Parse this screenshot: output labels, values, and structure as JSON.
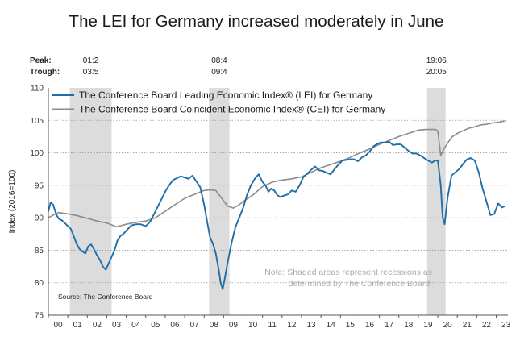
{
  "chart_data": {
    "type": "line",
    "title": "The LEI for Germany increased moderately in June",
    "ylabel": "Index (2016=100)",
    "ylim": [
      75,
      110
    ],
    "yticks": [
      75,
      80,
      85,
      90,
      95,
      100,
      105,
      110
    ],
    "xlim": [
      2000,
      2023.6
    ],
    "xtick_labels": [
      "00",
      "01",
      "02",
      "03",
      "04",
      "05",
      "06",
      "07",
      "08",
      "09",
      "10",
      "11",
      "12",
      "13",
      "14",
      "15",
      "16",
      "17",
      "18",
      "19",
      "20",
      "21",
      "22",
      "23"
    ],
    "grid": "horizontal dotted",
    "legend_position": "top-left",
    "peak_label": "Peak:",
    "trough_label": "Trough:",
    "recessions": [
      {
        "start": 2001.1,
        "end": 2003.25,
        "peak": "01:2",
        "trough": "03:5"
      },
      {
        "start": 2008.25,
        "end": 2009.3,
        "peak": "08:4",
        "trough": "09:4"
      },
      {
        "start": 2019.45,
        "end": 2020.4,
        "peak": "19:06",
        "trough": "20:05"
      }
    ],
    "series": [
      {
        "name": "The Conference Board Leading Economic Index® (LEI) for Germany",
        "color": "#1f6ea8",
        "x": [
          2000.0,
          2000.12,
          2000.25,
          2000.4,
          2000.55,
          2000.7,
          2000.85,
          2001.0,
          2001.15,
          2001.3,
          2001.45,
          2001.6,
          2001.75,
          2001.9,
          2002.05,
          2002.2,
          2002.35,
          2002.5,
          2002.65,
          2002.8,
          2002.95,
          2003.1,
          2003.25,
          2003.4,
          2003.55,
          2003.7,
          2003.85,
          2004.0,
          2004.25,
          2004.5,
          2004.75,
          2005.0,
          2005.25,
          2005.5,
          2005.75,
          2006.0,
          2006.2,
          2006.4,
          2006.6,
          2006.8,
          2007.0,
          2007.2,
          2007.4,
          2007.6,
          2007.8,
          2008.0,
          2008.15,
          2008.3,
          2008.45,
          2008.6,
          2008.75,
          2008.85,
          2008.95,
          2009.05,
          2009.2,
          2009.4,
          2009.6,
          2009.8,
          2010.0,
          2010.2,
          2010.4,
          2010.6,
          2010.8,
          2011.0,
          2011.15,
          2011.3,
          2011.45,
          2011.6,
          2011.75,
          2011.9,
          2012.1,
          2012.3,
          2012.5,
          2012.7,
          2012.9,
          2013.1,
          2013.3,
          2013.5,
          2013.7,
          2013.9,
          2014.1,
          2014.3,
          2014.5,
          2014.7,
          2014.9,
          2015.1,
          2015.3,
          2015.5,
          2015.7,
          2015.9,
          2016.1,
          2016.3,
          2016.5,
          2016.7,
          2016.9,
          2017.1,
          2017.3,
          2017.5,
          2017.7,
          2017.9,
          2018.1,
          2018.3,
          2018.5,
          2018.7,
          2018.9,
          2019.1,
          2019.3,
          2019.5,
          2019.7,
          2019.85,
          2020.0,
          2020.15,
          2020.25,
          2020.35,
          2020.5,
          2020.7,
          2020.9,
          2021.1,
          2021.3,
          2021.5,
          2021.7,
          2021.9,
          2022.1,
          2022.3,
          2022.5,
          2022.7,
          2022.9,
          2023.1,
          2023.3,
          2023.45
        ],
        "values": [
          91.0,
          92.4,
          92.0,
          90.5,
          89.8,
          89.6,
          89.2,
          88.7,
          88.3,
          87.2,
          86.0,
          85.2,
          84.8,
          84.5,
          85.6,
          85.9,
          85.1,
          84.2,
          83.5,
          82.5,
          82.0,
          83.0,
          84.0,
          85.0,
          86.5,
          87.2,
          87.5,
          88.0,
          88.8,
          89.0,
          89.0,
          88.7,
          89.5,
          91.0,
          92.5,
          94.0,
          95.0,
          95.8,
          96.1,
          96.4,
          96.2,
          96.0,
          96.5,
          95.6,
          94.7,
          92.0,
          89.5,
          87.0,
          86.0,
          84.5,
          82.0,
          80.0,
          79.0,
          80.5,
          83.0,
          86.0,
          88.5,
          90.0,
          91.5,
          93.5,
          95.0,
          96.0,
          96.7,
          95.5,
          95.0,
          94.0,
          94.5,
          94.2,
          93.5,
          93.2,
          93.4,
          93.6,
          94.2,
          94.0,
          95.0,
          96.3,
          96.8,
          97.4,
          97.9,
          97.3,
          97.2,
          96.9,
          96.7,
          97.5,
          98.2,
          98.8,
          98.9,
          99.0,
          99.0,
          98.7,
          99.3,
          99.6,
          100.2,
          101.0,
          101.4,
          101.6,
          101.6,
          101.7,
          101.2,
          101.3,
          101.3,
          100.8,
          100.3,
          99.9,
          99.9,
          99.6,
          99.2,
          98.8,
          98.5,
          98.8,
          98.8,
          95.0,
          90.0,
          89.0,
          93.0,
          96.5,
          97.0,
          97.5,
          98.3,
          99.0,
          99.2,
          98.8,
          97.0,
          94.5,
          92.5,
          90.4,
          90.6,
          92.2,
          91.6,
          91.8
        ]
      },
      {
        "name": "The Conference Board Coincident Economic Index® (CEI) for Germany",
        "color": "#8c8c8c",
        "x": [
          2000.0,
          2000.5,
          2001.0,
          2001.5,
          2002.0,
          2002.5,
          2003.0,
          2003.5,
          2004.0,
          2004.5,
          2005.0,
          2005.5,
          2006.0,
          2006.5,
          2007.0,
          2007.5,
          2008.0,
          2008.3,
          2008.6,
          2008.9,
          2009.2,
          2009.5,
          2009.8,
          2010.0,
          2010.5,
          2011.0,
          2011.5,
          2012.0,
          2012.5,
          2013.0,
          2013.5,
          2014.0,
          2014.5,
          2015.0,
          2015.5,
          2016.0,
          2016.5,
          2017.0,
          2017.5,
          2018.0,
          2018.5,
          2019.0,
          2019.4,
          2019.7,
          2019.9,
          2020.0,
          2020.15,
          2020.3,
          2020.5,
          2020.75,
          2021.0,
          2021.3,
          2021.6,
          2021.9,
          2022.2,
          2022.5,
          2022.8,
          2023.1,
          2023.45
        ],
        "values": [
          90.0,
          90.8,
          90.6,
          90.3,
          89.9,
          89.5,
          89.2,
          88.6,
          89.0,
          89.3,
          89.5,
          90.0,
          91.0,
          92.0,
          93.0,
          93.6,
          94.2,
          94.3,
          94.2,
          93.0,
          91.8,
          91.5,
          92.0,
          92.5,
          93.5,
          94.8,
          95.5,
          95.8,
          96.0,
          96.3,
          97.0,
          97.7,
          98.2,
          98.7,
          99.3,
          100.0,
          100.6,
          101.3,
          101.9,
          102.5,
          103.0,
          103.5,
          103.6,
          103.6,
          103.6,
          103.3,
          99.6,
          100.5,
          101.5,
          102.5,
          103.0,
          103.4,
          103.8,
          104.0,
          104.3,
          104.4,
          104.6,
          104.7,
          104.9
        ]
      }
    ],
    "source": "Source: The Conference Board",
    "annotation": [
      "Note: Shaded areas represent recessions as",
      "determined by The Conference Board."
    ]
  }
}
